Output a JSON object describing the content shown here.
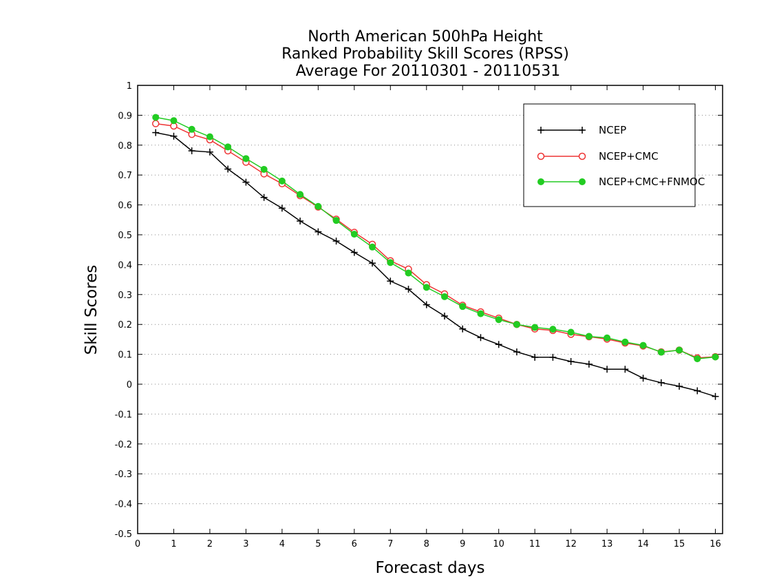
{
  "chart_data": {
    "type": "line",
    "title": [
      "North American 500hPa Height",
      "Ranked Probability Skill Scores (RPSS)",
      "Average For 20110301 - 20110531"
    ],
    "xlabel": "Forecast days",
    "ylabel": "Skill Scores",
    "xlim": [
      0,
      16.2
    ],
    "ylim": [
      -0.5,
      1
    ],
    "xticks": [
      0,
      1,
      2,
      3,
      4,
      5,
      6,
      7,
      8,
      9,
      10,
      11,
      12,
      13,
      14,
      15,
      16
    ],
    "yticks": [
      -0.5,
      -0.4,
      -0.3,
      -0.2,
      -0.1,
      0,
      0.1,
      0.2,
      0.3,
      0.4,
      0.5,
      0.6,
      0.7,
      0.8,
      0.9,
      1
    ],
    "ytick_labels": [
      "-0.5",
      "-0.4",
      "-0.3",
      "-0.2",
      "-0.1",
      "0",
      "0.1",
      "0.2",
      "0.3",
      "0.4",
      "0.5",
      "0.6",
      "0.7",
      "0.8",
      "0.9",
      "1"
    ],
    "grid": "horizontal dotted",
    "legend_position": "top-right",
    "x": [
      0.5,
      1,
      1.5,
      2,
      2.5,
      3,
      3.5,
      4,
      4.5,
      5,
      5.5,
      6,
      6.5,
      7,
      7.5,
      8,
      8.5,
      9,
      9.5,
      10,
      10.5,
      11,
      11.5,
      12,
      12.5,
      13,
      13.5,
      14,
      14.5,
      15,
      15.5,
      16
    ],
    "series": [
      {
        "name": "NCEP",
        "color": "#000000",
        "marker": "plus",
        "values": [
          0.842,
          0.83,
          0.781,
          0.777,
          0.72,
          0.676,
          0.625,
          0.589,
          0.546,
          0.51,
          0.479,
          0.441,
          0.405,
          0.345,
          0.318,
          0.266,
          0.228,
          0.185,
          0.156,
          0.133,
          0.108,
          0.09,
          0.09,
          0.076,
          0.067,
          0.05,
          0.05,
          0.02,
          0.005,
          -0.007,
          -0.022,
          -0.041
        ]
      },
      {
        "name": "NCEP+CMC",
        "color": "#ee3333",
        "marker": "open-circle",
        "values": [
          0.872,
          0.864,
          0.836,
          0.818,
          0.781,
          0.743,
          0.704,
          0.671,
          0.631,
          0.593,
          0.552,
          0.508,
          0.468,
          0.413,
          0.385,
          0.333,
          0.302,
          0.264,
          0.242,
          0.221,
          0.2,
          0.185,
          0.18,
          0.167,
          0.159,
          0.151,
          0.138,
          0.128,
          0.108,
          0.114,
          0.088,
          0.092
        ]
      },
      {
        "name": "NCEP+CMC+FNMOC",
        "color": "#22cc22",
        "marker": "filled-circle",
        "values": [
          0.893,
          0.882,
          0.853,
          0.828,
          0.794,
          0.755,
          0.719,
          0.68,
          0.635,
          0.595,
          0.548,
          0.502,
          0.459,
          0.407,
          0.372,
          0.324,
          0.293,
          0.26,
          0.236,
          0.216,
          0.2,
          0.19,
          0.184,
          0.174,
          0.16,
          0.155,
          0.141,
          0.13,
          0.107,
          0.114,
          0.085,
          0.091
        ]
      }
    ]
  }
}
